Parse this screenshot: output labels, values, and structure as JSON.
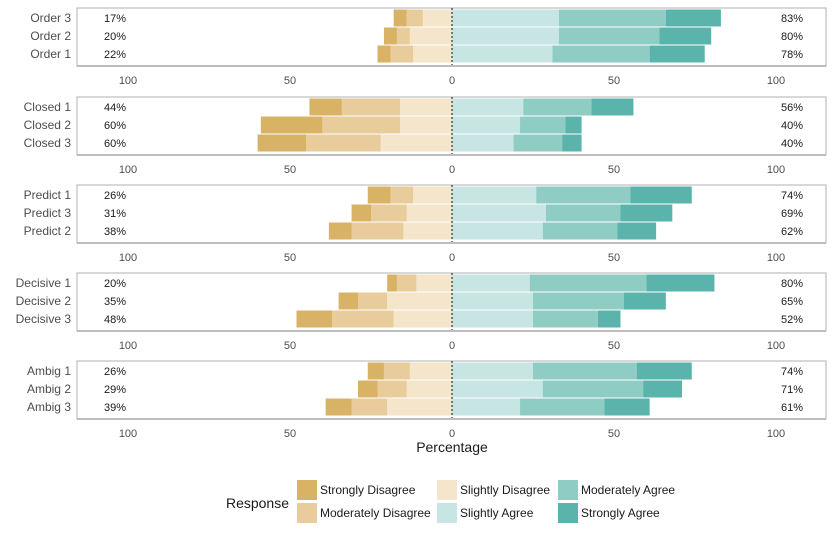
{
  "chart_data": {
    "type": "diverging-stacked-bar",
    "xlabel": "Percentage",
    "xlim": [
      -100,
      100
    ],
    "xticks": [
      -100,
      -50,
      0,
      50,
      100
    ],
    "tick_labels": [
      "100",
      "50",
      "0",
      "50",
      "100"
    ],
    "legend": {
      "title": "Response",
      "position": "bottom",
      "items": [
        "Strongly Disagree",
        "Moderately Disagree",
        "Slightly Disagree",
        "Slightly Agree",
        "Moderately Agree",
        "Strongly Agree"
      ]
    },
    "colors": {
      "Strongly Disagree": "#d8b365",
      "Moderately Disagree": "#e8cc9b",
      "Slightly Disagree": "#f5e5cb",
      "Slightly Agree": "#c7e6e3",
      "Moderately Agree": "#8fccc3",
      "Strongly Agree": "#5ab4ac"
    },
    "groups": [
      {
        "rows": [
          {
            "label": "Order 3",
            "left_pct": "17%",
            "right_pct": "83%",
            "values": [
              4,
              5,
              9,
              33,
              33,
              17
            ]
          },
          {
            "label": "Order 2",
            "left_pct": "20%",
            "right_pct": "80%",
            "values": [
              4,
              4,
              13,
              33,
              31,
              16
            ]
          },
          {
            "label": "Order 1",
            "left_pct": "22%",
            "right_pct": "78%",
            "values": [
              4,
              7,
              12,
              31,
              30,
              17
            ]
          }
        ]
      },
      {
        "rows": [
          {
            "label": "Closed 1",
            "left_pct": "44%",
            "right_pct": "56%",
            "values": [
              10,
              18,
              16,
              22,
              21,
              13
            ]
          },
          {
            "label": "Closed 2",
            "left_pct": "60%",
            "right_pct": "40%",
            "values": [
              19,
              24,
              16,
              21,
              14,
              5
            ]
          },
          {
            "label": "Closed 3",
            "left_pct": "60%",
            "right_pct": "40%",
            "values": [
              15,
              23,
              22,
              19,
              15,
              6
            ]
          }
        ]
      },
      {
        "rows": [
          {
            "label": "Predict 1",
            "left_pct": "26%",
            "right_pct": "74%",
            "values": [
              7,
              7,
              12,
              26,
              29,
              19
            ]
          },
          {
            "label": "Predict 3",
            "left_pct": "31%",
            "right_pct": "69%",
            "values": [
              6,
              11,
              14,
              29,
              23,
              16
            ]
          },
          {
            "label": "Predict 2",
            "left_pct": "38%",
            "right_pct": "62%",
            "values": [
              7,
              16,
              15,
              28,
              23,
              12
            ]
          }
        ]
      },
      {
        "rows": [
          {
            "label": "Decisive 1",
            "left_pct": "20%",
            "right_pct": "80%",
            "values": [
              3,
              6,
              11,
              24,
              36,
              21
            ]
          },
          {
            "label": "Decisive 2",
            "left_pct": "35%",
            "right_pct": "65%",
            "values": [
              6,
              9,
              20,
              25,
              28,
              13
            ]
          },
          {
            "label": "Decisive 3",
            "left_pct": "48%",
            "right_pct": "52%",
            "values": [
              11,
              19,
              18,
              25,
              20,
              7
            ]
          }
        ]
      },
      {
        "rows": [
          {
            "label": "Ambig 1",
            "left_pct": "26%",
            "right_pct": "74%",
            "values": [
              5,
              8,
              13,
              25,
              32,
              17
            ]
          },
          {
            "label": "Ambig 2",
            "left_pct": "29%",
            "right_pct": "71%",
            "values": [
              6,
              9,
              14,
              28,
              31,
              12
            ]
          },
          {
            "label": "Ambig 3",
            "left_pct": "39%",
            "right_pct": "61%",
            "values": [
              8,
              11,
              20,
              21,
              26,
              14
            ]
          }
        ]
      }
    ]
  }
}
